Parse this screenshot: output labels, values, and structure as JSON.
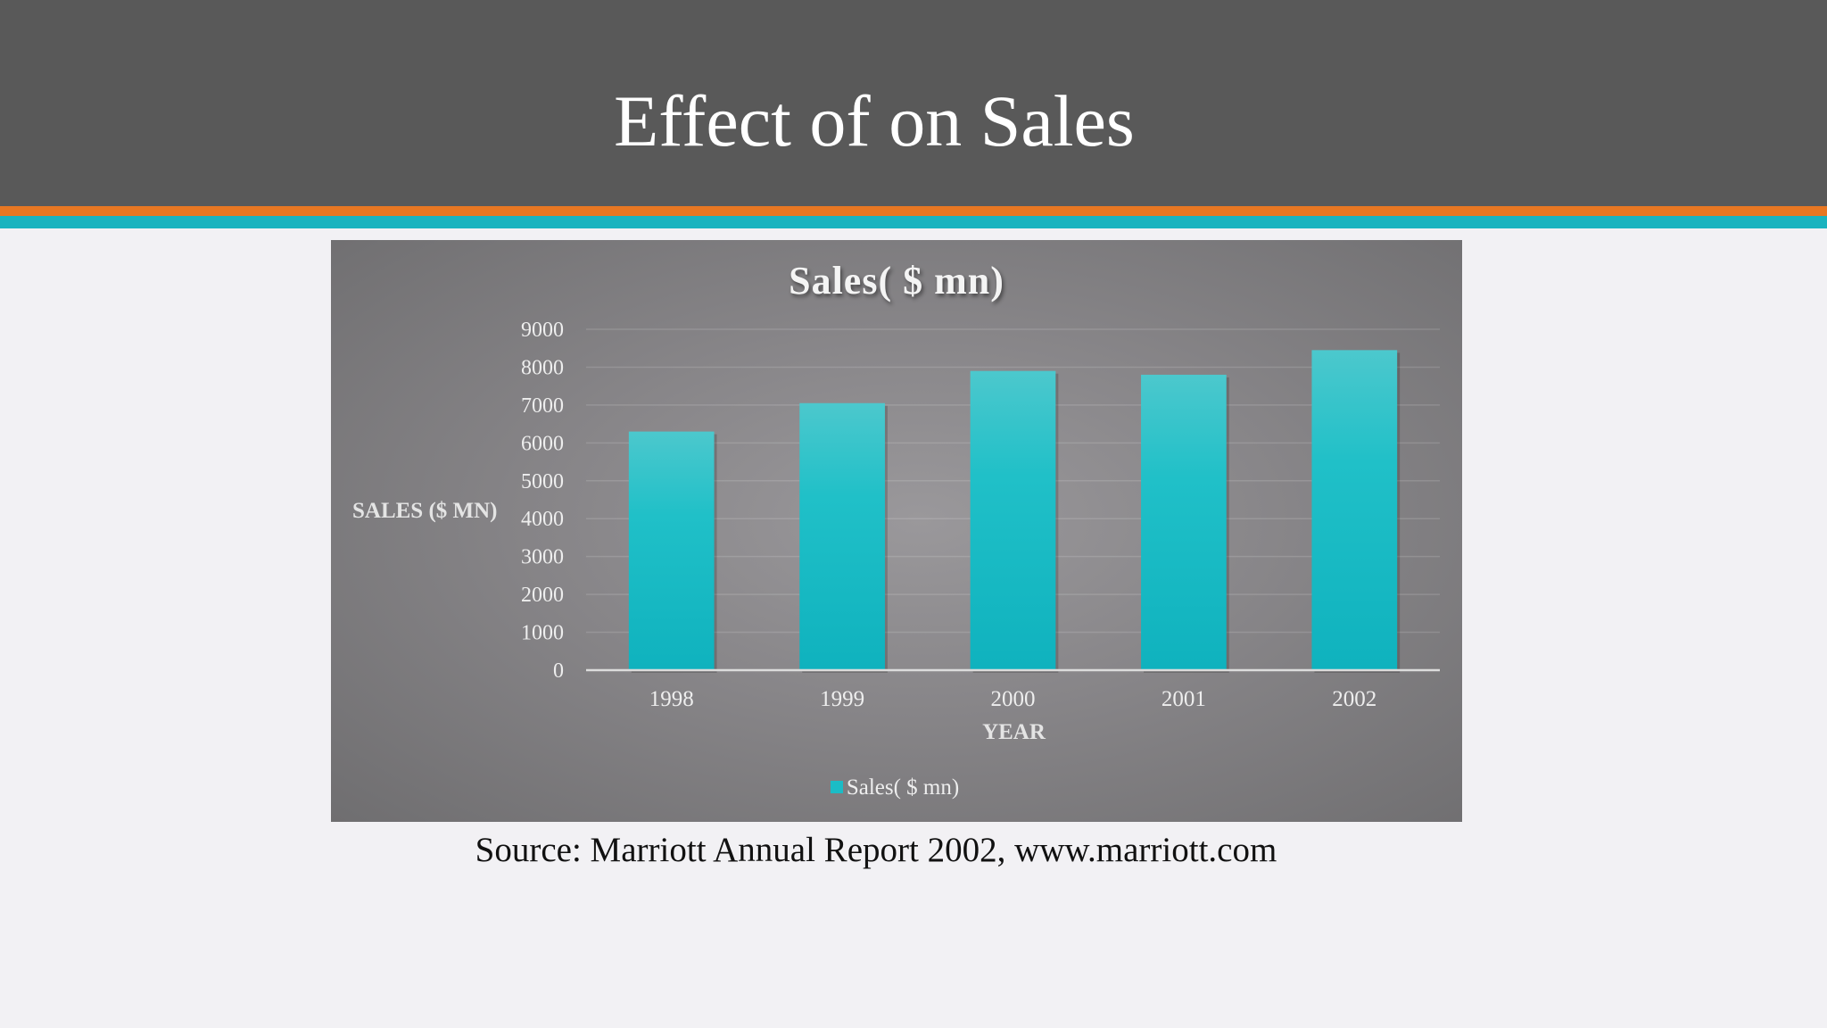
{
  "slide": {
    "title": "Effect of on Sales",
    "source": "Source: Marriott Annual Report 2002, www.marriott.com"
  },
  "colors": {
    "header": "#595959",
    "accent_orange": "#e87722",
    "accent_teal": "#1bb3bf",
    "bar": "#1bbcc6"
  },
  "chart_data": {
    "type": "bar",
    "title": "Sales( $ mn)",
    "xlabel": "YEAR",
    "ylabel": "SALES ($ MN)",
    "categories": [
      "1998",
      "1999",
      "2000",
      "2001",
      "2002"
    ],
    "series": [
      {
        "name": "Sales( $ mn)",
        "values": [
          6300,
          7050,
          7900,
          7800,
          8450
        ]
      }
    ],
    "ylim": [
      0,
      9000
    ],
    "yticks": [
      0,
      1000,
      2000,
      3000,
      4000,
      5000,
      6000,
      7000,
      8000,
      9000
    ],
    "grid": true,
    "legend": "bottom"
  }
}
